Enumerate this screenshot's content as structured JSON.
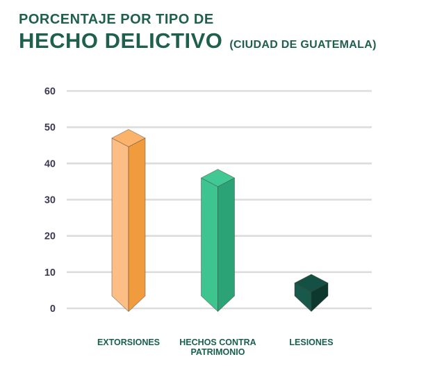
{
  "header": {
    "title_line1": "PORCENTAJE POR TIPO DE",
    "title_line2": "HECHO DELICTIVO",
    "subtitle": "(CIUDAD DE GUATEMALA)",
    "title_color": "#1E5F4E"
  },
  "axis": {
    "tick_label_color": "#3C3A52",
    "grid_color": "#DCDCDC",
    "category_label_color": "#17604C"
  },
  "chart_data": {
    "type": "bar",
    "style": "3d-isometric-bars",
    "title": "PORCENTAJE POR TIPO DE HECHO DELICTIVO (CIUDAD DE GUATEMALA)",
    "categories": [
      "EXTORSIONES",
      "HECHOS CONTRA PATRIMONIO",
      "LESIONES"
    ],
    "category_label_lines": [
      [
        "EXTORSIONES"
      ],
      [
        "HECHOS CONTRA",
        "PATRIMONIO"
      ],
      [
        "LESIONES"
      ]
    ],
    "values": [
      47,
      36,
      7
    ],
    "unit": "%",
    "ylim": [
      0,
      60
    ],
    "yticks": [
      0,
      10,
      20,
      30,
      40,
      50,
      60
    ],
    "grid": "horizontal",
    "legend": "none",
    "bar_colors": [
      {
        "left": "#FCBE84",
        "right": "#F19B3F",
        "top": "#FBB36B"
      },
      {
        "left": "#3EC48F",
        "right": "#2CA377",
        "top": "#41C893"
      },
      {
        "left": "#19594B",
        "right": "#0C382E",
        "top": "#155044"
      }
    ]
  }
}
